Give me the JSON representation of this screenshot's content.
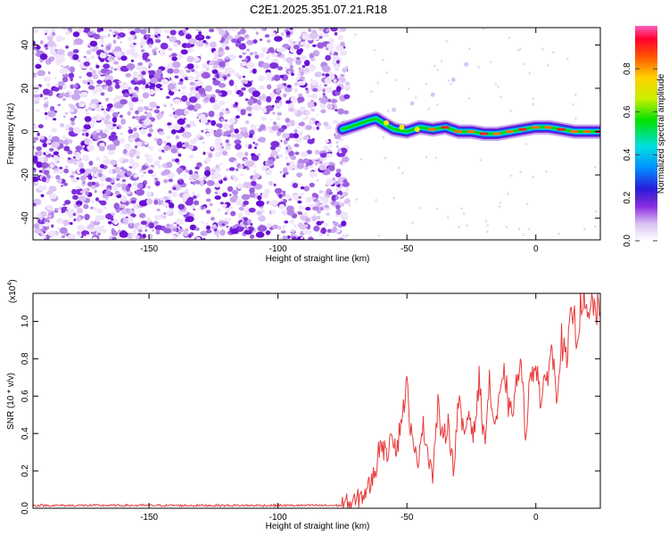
{
  "chart_data": [
    {
      "type": "heatmap",
      "title": "C2E1.2025.351.07.21.R18",
      "xlabel": "Height of straight line (km)",
      "ylabel": "Frequency (Hz)",
      "xlim": [
        -195,
        25
      ],
      "ylim": [
        -50,
        48
      ],
      "xticks": [
        -150,
        -100,
        -50,
        0
      ],
      "xtick_labels": [
        "-150",
        "-100",
        "-50",
        "0"
      ],
      "yticks": [
        -40,
        -20,
        0,
        20,
        40
      ],
      "ytick_labels": [
        "-40",
        "-20",
        "0",
        "20",
        "40"
      ],
      "noise_region_x": [
        -195,
        -73
      ],
      "signal_region_x": [
        -73,
        25
      ],
      "signal_track": {
        "x": [
          -75,
          -70,
          -65,
          -62,
          -58,
          -55,
          -50,
          -45,
          -40,
          -35,
          -30,
          -25,
          -20,
          -15,
          -10,
          -5,
          0,
          5,
          10,
          15,
          20,
          25
        ],
        "y": [
          1,
          3,
          5,
          6,
          3,
          1,
          0,
          2,
          1,
          2,
          0,
          0,
          -1,
          -1,
          0,
          1,
          2,
          2,
          1,
          0,
          0,
          0
        ]
      },
      "faint_trace": {
        "x": [
          -62,
          -55,
          -48,
          -40,
          -32,
          -27
        ],
        "y": [
          7,
          10,
          13,
          17,
          24,
          31
        ]
      },
      "colorbar": {
        "label": "Normalized spectral amplitude",
        "range": [
          0.0,
          1.0
        ],
        "ticks": [
          0.0,
          0.2,
          0.4,
          0.6,
          0.8
        ],
        "tick_labels": [
          "0.0",
          "0.2",
          "0.4",
          "0.6",
          "0.8"
        ]
      }
    },
    {
      "type": "line",
      "xlabel": "Height of straight line (km)",
      "ylabel": "SNR (10 * v/v)",
      "scale_label": "(x10",
      "scale_exp": "4",
      "scale_close": ")",
      "xlim": [
        -195,
        25
      ],
      "ylim": [
        0,
        1.15
      ],
      "xticks": [
        -150,
        -100,
        -50,
        0
      ],
      "xtick_labels": [
        "-150",
        "-100",
        "-50",
        "0"
      ],
      "yticks": [
        0.0,
        0.2,
        0.4,
        0.6,
        0.8,
        1.0
      ],
      "ytick_labels": [
        "0.0",
        "0.2",
        "0.4",
        "0.6",
        "0.8",
        "1.0"
      ],
      "series": [
        {
          "name": "SNR",
          "color": "#e83a3a",
          "x": [
            -195,
            -75,
            -70,
            -66,
            -64,
            -62,
            -60,
            -58,
            -56,
            -54,
            -52,
            -50,
            -48,
            -46,
            -44,
            -42,
            -40,
            -38,
            -36,
            -34,
            -32,
            -30,
            -28,
            -26,
            -24,
            -22,
            -20,
            -18,
            -16,
            -14,
            -12,
            -10,
            -8,
            -6,
            -4,
            -2,
            0,
            2,
            4,
            6,
            8,
            10,
            12,
            14,
            16,
            18,
            20,
            22,
            24,
            25
          ],
          "y": [
            0.015,
            0.015,
            0.03,
            0.09,
            0.13,
            0.22,
            0.38,
            0.26,
            0.44,
            0.3,
            0.5,
            0.65,
            0.35,
            0.24,
            0.45,
            0.32,
            0.18,
            0.55,
            0.34,
            0.48,
            0.2,
            0.58,
            0.38,
            0.52,
            0.4,
            0.68,
            0.36,
            0.66,
            0.44,
            0.57,
            0.72,
            0.48,
            0.62,
            0.78,
            0.42,
            0.7,
            0.8,
            0.56,
            0.68,
            0.86,
            0.62,
            0.9,
            0.76,
            1.08,
            0.92,
            1.15,
            0.98,
            1.1,
            1.05,
            1.05
          ]
        }
      ]
    }
  ]
}
